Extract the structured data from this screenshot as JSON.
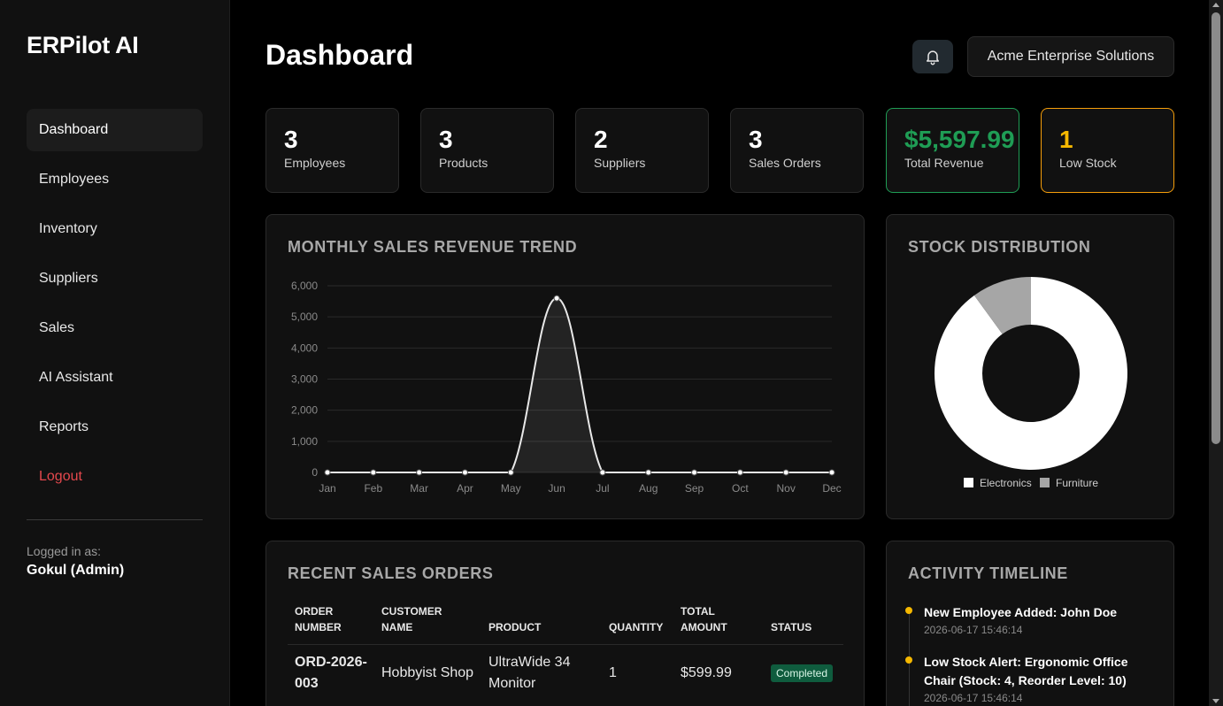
{
  "sidebar": {
    "brand": "ERPilot AI",
    "items": [
      {
        "label": "Dashboard"
      },
      {
        "label": "Employees"
      },
      {
        "label": "Inventory"
      },
      {
        "label": "Suppliers"
      },
      {
        "label": "Sales"
      },
      {
        "label": "AI Assistant"
      },
      {
        "label": "Reports"
      },
      {
        "label": "Logout"
      }
    ],
    "logged_in_label": "Logged in as:",
    "logged_in_user": "Gokul (Admin)"
  },
  "header": {
    "title": "Dashboard",
    "bell_icon": "bell-icon",
    "company": "Acme Enterprise Solutions"
  },
  "stats": [
    {
      "value": "3",
      "label": "Employees"
    },
    {
      "value": "3",
      "label": "Products"
    },
    {
      "value": "2",
      "label": "Suppliers"
    },
    {
      "value": "3",
      "label": "Sales Orders"
    },
    {
      "value": "$5,597.99",
      "label": "Total Revenue"
    },
    {
      "value": "1",
      "label": "Low Stock"
    }
  ],
  "colors": {
    "revenue": "#1f9d55",
    "low_stock": "#f5b800",
    "logout": "#e5484d",
    "badge_completed": "#0f5c3e"
  },
  "sales_panel": {
    "title": "MONTHLY SALES REVENUE TREND"
  },
  "stock_panel": {
    "title": "STOCK DISTRIBUTION"
  },
  "orders_panel": {
    "title": "RECENT SALES ORDERS",
    "columns": [
      "ORDER NUMBER",
      "CUSTOMER NAME",
      "PRODUCT",
      "QUANTITY",
      "TOTAL AMOUNT",
      "STATUS"
    ],
    "rows": [
      {
        "order": "ORD-2026-003",
        "customer": "Hobbyist Shop",
        "product": "UltraWide 34 Monitor",
        "quantity": "1",
        "total": "$599.99",
        "status": "Completed"
      }
    ]
  },
  "timeline_panel": {
    "title": "ACTIVITY TIMELINE",
    "items": [
      {
        "title": "New Employee Added: John Doe",
        "time": "2026-06-17 15:46:14"
      },
      {
        "title": "Low Stock Alert: Ergonomic Office Chair (Stock: 4, Reorder Level: 10)",
        "time": "2026-06-17 15:46:14"
      }
    ]
  },
  "chart_data": [
    {
      "type": "line",
      "title": "MONTHLY SALES REVENUE TREND",
      "categories": [
        "Jan",
        "Feb",
        "Mar",
        "Apr",
        "May",
        "Jun",
        "Jul",
        "Aug",
        "Sep",
        "Oct",
        "Nov",
        "Dec"
      ],
      "series": [
        {
          "values": [
            0,
            0,
            0,
            0,
            0,
            5598,
            0,
            0,
            0,
            0,
            0,
            0
          ]
        }
      ],
      "yticks": [
        "0",
        "1,000",
        "2,000",
        "3,000",
        "4,000",
        "5,000",
        "6,000"
      ],
      "ylim": [
        0,
        6000
      ],
      "grid": true,
      "fill": true,
      "line_color": "#e8e8e8"
    },
    {
      "type": "pie",
      "title": "STOCK DISTRIBUTION",
      "donut": true,
      "labels": [
        "Electronics",
        "Furniture"
      ],
      "values": [
        90,
        10
      ],
      "colors": [
        "#ffffff",
        "#a6a6a6"
      ],
      "legend": "bottom"
    }
  ]
}
